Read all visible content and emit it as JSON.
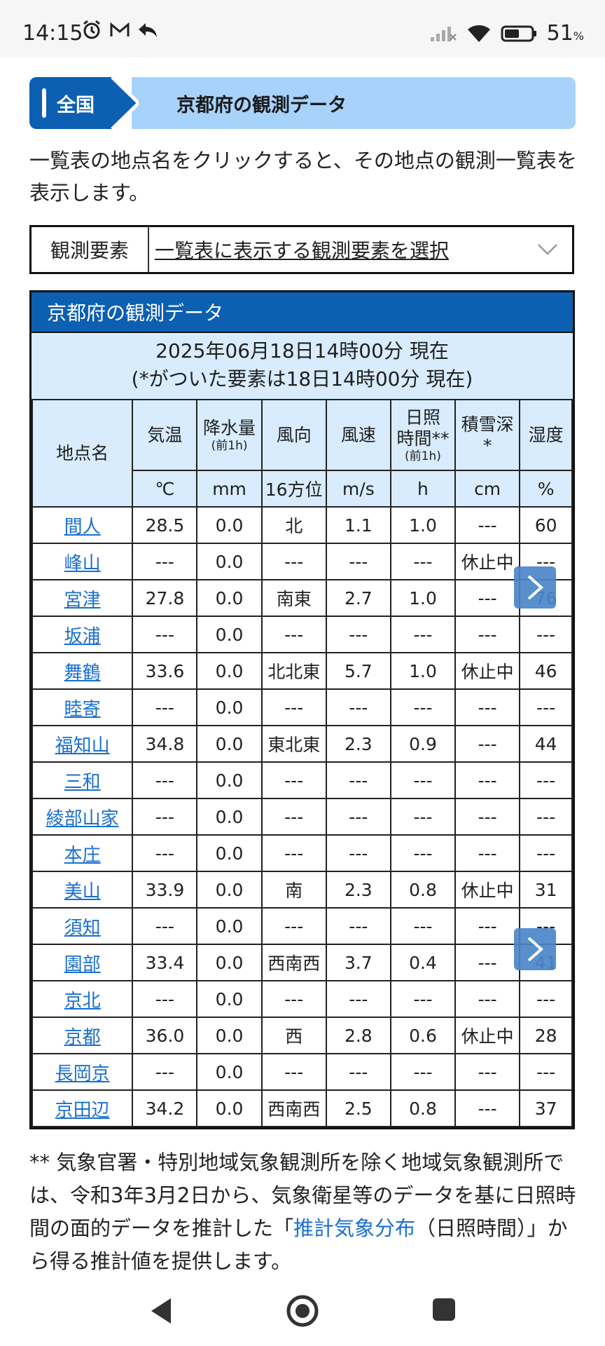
{
  "status_bar": {
    "time": "14:15",
    "battery": "51",
    "battery_unit": "%"
  },
  "breadcrumb": {
    "home": "全国",
    "current": "京都府の観測データ"
  },
  "intro": "一覧表の地点名をクリックすると、その地点の観測一覧表を表示します。",
  "selector": {
    "label": "観測要素",
    "value": "一覧表に表示する観測要素を選択"
  },
  "table": {
    "title": "京都府の観測データ",
    "time_line1": "2025年06月18日14時00分 現在",
    "time_line2": "(*がついた要素は18日14時00分 現在)",
    "columns": [
      {
        "name": "地点名",
        "sub": "",
        "unit": ""
      },
      {
        "name": "気温",
        "sub": "",
        "unit": "℃"
      },
      {
        "name": "降水量",
        "sub": "(前1h)",
        "unit": "mm"
      },
      {
        "name": "風向",
        "sub": "",
        "unit": "16方位"
      },
      {
        "name": "風速",
        "sub": "",
        "unit": "m/s"
      },
      {
        "name": "日照\n時間**",
        "sub": "(前1h)",
        "unit": "h"
      },
      {
        "name": "積雪深\n*",
        "sub": "",
        "unit": "cm"
      },
      {
        "name": "湿度",
        "sub": "",
        "unit": "%"
      }
    ],
    "rows": [
      [
        "間人",
        "28.5",
        "0.0",
        "北",
        "1.1",
        "1.0",
        "---",
        "60"
      ],
      [
        "峰山",
        "---",
        "0.0",
        "---",
        "---",
        "---",
        "休止中",
        "---"
      ],
      [
        "宮津",
        "27.8",
        "0.0",
        "南東",
        "2.7",
        "1.0",
        "---",
        "76"
      ],
      [
        "坂浦",
        "---",
        "0.0",
        "---",
        "---",
        "---",
        "---",
        "---"
      ],
      [
        "舞鶴",
        "33.6",
        "0.0",
        "北北東",
        "5.7",
        "1.0",
        "休止中",
        "46"
      ],
      [
        "睦寄",
        "---",
        "0.0",
        "---",
        "---",
        "---",
        "---",
        "---"
      ],
      [
        "福知山",
        "34.8",
        "0.0",
        "東北東",
        "2.3",
        "0.9",
        "---",
        "44"
      ],
      [
        "三和",
        "---",
        "0.0",
        "---",
        "---",
        "---",
        "---",
        "---"
      ],
      [
        "綾部山家",
        "---",
        "0.0",
        "---",
        "---",
        "---",
        "---",
        "---"
      ],
      [
        "本庄",
        "---",
        "0.0",
        "---",
        "---",
        "---",
        "---",
        "---"
      ],
      [
        "美山",
        "33.9",
        "0.0",
        "南",
        "2.3",
        "0.8",
        "休止中",
        "31"
      ],
      [
        "須知",
        "---",
        "0.0",
        "---",
        "---",
        "---",
        "---",
        "---"
      ],
      [
        "園部",
        "33.4",
        "0.0",
        "西南西",
        "3.7",
        "0.4",
        "---",
        "41"
      ],
      [
        "京北",
        "---",
        "0.0",
        "---",
        "---",
        "---",
        "---",
        "---"
      ],
      [
        "京都",
        "36.0",
        "0.0",
        "西",
        "2.8",
        "0.6",
        "休止中",
        "28"
      ],
      [
        "長岡京",
        "---",
        "0.0",
        "---",
        "---",
        "---",
        "---",
        "---"
      ],
      [
        "京田辺",
        "34.2",
        "0.0",
        "西南西",
        "2.5",
        "0.8",
        "---",
        "37"
      ]
    ]
  },
  "footnote": {
    "before": "** 気象官署・特別地域気象観測所を除く地域気象観測所では、令和3年3月2日から、気象衛星等のデータを基に日照時間の面的データを推計した「",
    "link": "推計気象分布",
    "after": "（日照時間）」から得る推計値を提供します。"
  },
  "colors": {
    "primary": "#0c5fb1",
    "light": "#d8ecfd",
    "crumb_light": "#a7d3fb",
    "link": "#1a6fd0"
  }
}
